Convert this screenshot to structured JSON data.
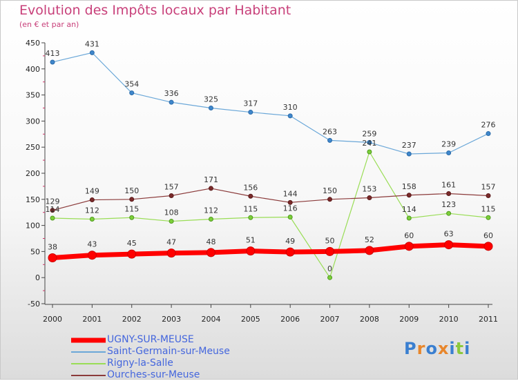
{
  "header": {
    "title": "Evolution des Impôts locaux par Habitant",
    "subtitle": "(en € et par an)"
  },
  "logo": {
    "text": "Proxiti",
    "colors": [
      "#3a7fd0",
      "#e8862b",
      "#3a7fd0",
      "#e8862b",
      "#3a7fd0",
      "#8cc83c",
      "#3a7fd0"
    ]
  },
  "chart_data": {
    "type": "line",
    "title": "Evolution des Impôts locaux par Habitant",
    "subtitle": "(en € et par an)",
    "xlabel": "",
    "ylabel": "",
    "x": [
      "2000",
      "2001",
      "2002",
      "2003",
      "2004",
      "2005",
      "2006",
      "2007",
      "2008",
      "2009",
      "2010",
      "2011"
    ],
    "ylim": [
      -50,
      450
    ],
    "yticks": [
      -50,
      0,
      50,
      100,
      150,
      200,
      250,
      300,
      350,
      400,
      450
    ],
    "grid": false,
    "legend_position": "bottom-left",
    "series": [
      {
        "name": "UGNY-SUR-MEUSE",
        "color": "#ff0000",
        "values": [
          38,
          43,
          45,
          47,
          48,
          51,
          49,
          50,
          52,
          60,
          63,
          60
        ]
      },
      {
        "name": "Saint-Germain-sur-Meuse",
        "color": "#6aa7d8",
        "values": [
          413,
          431,
          354,
          336,
          325,
          317,
          310,
          263,
          259,
          237,
          239,
          276
        ]
      },
      {
        "name": "Rigny-la-Salle",
        "color": "#99dd55",
        "values": [
          114,
          112,
          115,
          108,
          112,
          115,
          116,
          0,
          241,
          114,
          123,
          115
        ]
      },
      {
        "name": "Ourches-sur-Meuse",
        "color": "#8b3a3a",
        "values": [
          129,
          149,
          150,
          157,
          171,
          156,
          144,
          150,
          153,
          158,
          161,
          157
        ]
      }
    ]
  }
}
